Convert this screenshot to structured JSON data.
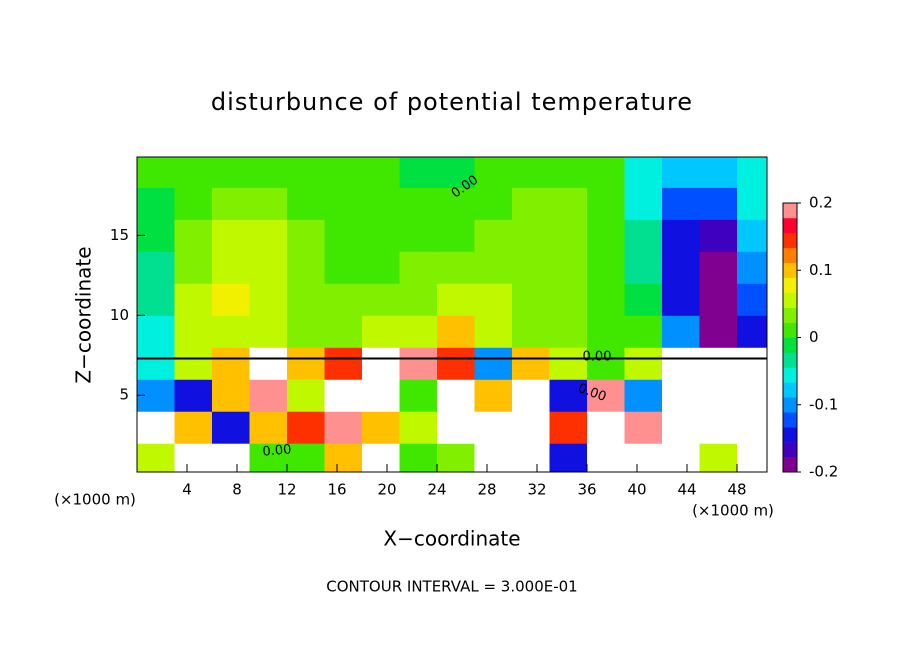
{
  "chart_data": {
    "type": "contour",
    "title": "disturbunce of potential temperature",
    "x_label": "X−coordinate",
    "y_label": "Z−coordinate",
    "x_unit_labels": [
      "(×1000 m)",
      "(×1000 m)"
    ],
    "footer": "CONTOUR INTERVAL = 3.000E-01",
    "contour_labels": [
      "0.00",
      "0.00",
      "0.00",
      "0.00"
    ],
    "xlim": [
      0,
      50.4
    ],
    "ylim": [
      0.2,
      19.9
    ],
    "xticks": [
      4,
      8,
      12,
      16,
      20,
      24,
      28,
      32,
      36,
      40,
      44,
      48
    ],
    "yticks": [
      5,
      10,
      15
    ],
    "clim": [
      -0.2,
      0.2
    ],
    "cticks": [
      -0.2,
      -0.1,
      0,
      0.1,
      0.2
    ],
    "colors": [
      "#800090",
      "#4000c0",
      "#1010e0",
      "#0050ff",
      "#0090ff",
      "#00c8ff",
      "#00f0e0",
      "#00e090",
      "#00e040",
      "#40e800",
      "#80f000",
      "#c0f800",
      "#f0f000",
      "#ffc000",
      "#ff8000",
      "#ff3000",
      "#ff0030",
      "#ff9090"
    ],
    "x": [
      1.5,
      4.5,
      7.5,
      10.5,
      13.5,
      16.5,
      19.5,
      22.5,
      25.5,
      28.5,
      31.5,
      34.5,
      37.5,
      40.5,
      43.5,
      46.5,
      49.5
    ],
    "y": [
      1,
      3,
      5,
      7,
      9,
      11,
      13,
      15,
      17,
      19
    ],
    "z": [
      [
        0.05,
        -0.3,
        0.3,
        0.02,
        0,
        0.1,
        0.3,
        0.02,
        0.03,
        -0.3,
        -0.3,
        -0.15,
        0.3,
        -0.3,
        -0.3,
        0.05,
        -0.3
      ],
      [
        -0.3,
        0.1,
        -0.15,
        0.1,
        0.15,
        0.2,
        0.1,
        0.05,
        -0.3,
        -0.3,
        0.3,
        0.15,
        -0.3,
        0.2,
        -0.3,
        0.3,
        -0.3
      ],
      [
        -0.1,
        -0.15,
        0.1,
        0.2,
        0.05,
        0.3,
        -0.3,
        0,
        0.3,
        0.1,
        -0.3,
        -0.15,
        0.2,
        -0.1,
        -0.3,
        -0.3,
        0.3
      ],
      [
        -0.05,
        0.05,
        0.1,
        -0.3,
        0.1,
        0.15,
        0.3,
        0.2,
        0.15,
        -0.1,
        0.1,
        0.05,
        0.02,
        0.05,
        -0.3,
        -0.3,
        -0.3
      ],
      [
        -0.05,
        0.05,
        0.06,
        0.05,
        0.04,
        0.04,
        0.06,
        0.05,
        0.1,
        0.05,
        0.04,
        0.04,
        0.02,
        0,
        -0.1,
        -0.18,
        -0.15
      ],
      [
        -0.04,
        0.05,
        0.07,
        0.05,
        0.04,
        0.03,
        0.03,
        0.04,
        0.05,
        0.05,
        0.04,
        0.03,
        0.02,
        -0.02,
        -0.14,
        -0.2,
        -0.13
      ],
      [
        -0.03,
        0.04,
        0.06,
        0.06,
        0.04,
        0.02,
        0.02,
        0.03,
        0.03,
        0.04,
        0.04,
        0.04,
        0.02,
        -0.03,
        -0.15,
        -0.18,
        -0.1
      ],
      [
        -0.02,
        0.03,
        0.05,
        0.05,
        0.03,
        0.02,
        0.01,
        0.02,
        0.02,
        0.03,
        0.03,
        0.03,
        0.01,
        -0.04,
        -0.14,
        -0.16,
        -0.08
      ],
      [
        -0.01,
        0.02,
        0.03,
        0.03,
        0.02,
        0.02,
        0.01,
        0,
        0,
        0.02,
        0.03,
        0.03,
        0.01,
        -0.05,
        -0.12,
        -0.12,
        -0.06
      ],
      [
        0,
        0.01,
        0.02,
        0.02,
        0.02,
        0.01,
        0,
        -0.01,
        -0.01,
        0.01,
        0.02,
        0.02,
        0.01,
        -0.06,
        -0.08,
        -0.08,
        -0.05
      ]
    ]
  }
}
